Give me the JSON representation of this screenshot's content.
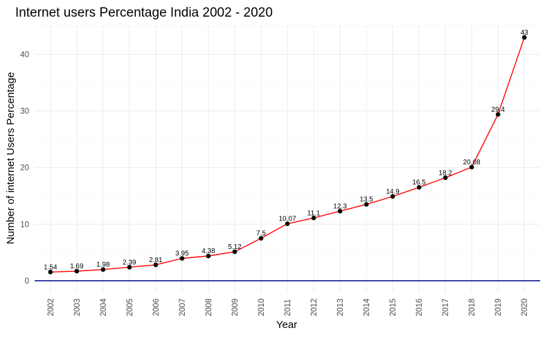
{
  "chart_data": {
    "type": "line",
    "title": "Internet users Percentage India 2002 - 2020",
    "xlabel": "Year",
    "ylabel": "Number of internet Users Percentage",
    "categories": [
      "2002",
      "2003",
      "2004",
      "2005",
      "2006",
      "2007",
      "2008",
      "2009",
      "2010",
      "2011",
      "2012",
      "2013",
      "2014",
      "2015",
      "2016",
      "2017",
      "2018",
      "2019",
      "2020"
    ],
    "series": [
      {
        "values": [
          1.54,
          1.69,
          1.98,
          2.39,
          2.81,
          3.95,
          4.38,
          5.12,
          7.5,
          10.07,
          11.1,
          12.3,
          13.5,
          14.9,
          16.5,
          18.2,
          20.08,
          29.4,
          43
        ],
        "labels": [
          "1.54",
          "1.69",
          "1.98",
          "2.39",
          "2.81",
          "3.95",
          "4.38",
          "5.12",
          "7.5",
          "10.07",
          "11.1",
          "12.3",
          "13.5",
          "14.9",
          "16.5",
          "18.2",
          "20.08",
          "29.4",
          "43"
        ],
        "color": "#ff0000"
      }
    ],
    "yticks": [
      0,
      10,
      20,
      30,
      40
    ],
    "ytick_labels": [
      "0",
      "10",
      "20",
      "30",
      "40"
    ],
    "ylim": [
      -2.1,
      45.2
    ],
    "reference_line": {
      "y": 0,
      "color": "#00008b"
    },
    "point_color": "#000000",
    "grid": true
  }
}
